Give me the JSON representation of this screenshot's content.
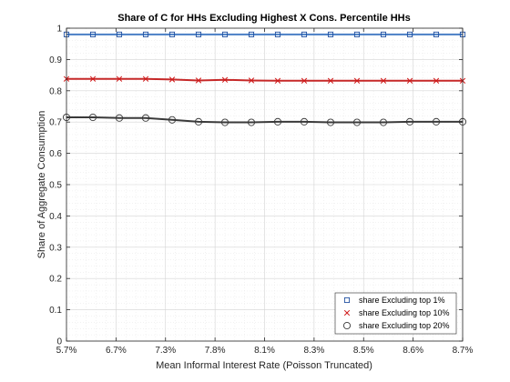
{
  "chart_data": {
    "type": "line",
    "title": "Share of C for HHs Excluding Highest X Cons. Percentile HHs",
    "xlabel": "Mean Informal Interest Rate (Poisson Truncated)",
    "ylabel": "Share of Aggregate Consumption",
    "x_tick_labels": [
      "5.7%",
      "6.7%",
      "7.3%",
      "7.8%",
      "8.1%",
      "8.3%",
      "8.5%",
      "8.6%",
      "8.7%"
    ],
    "y_ticks": [
      0,
      0.1,
      0.2,
      0.3,
      0.4,
      0.5,
      0.6,
      0.7,
      0.8,
      0.9,
      1
    ],
    "y_tick_labels": [
      "0",
      "0.1",
      "0.2",
      "0.3",
      "0.4",
      "0.5",
      "0.6",
      "0.7",
      "0.8",
      "0.9",
      "1"
    ],
    "ylim": [
      0,
      1
    ],
    "grid": true,
    "legend_position": "bottom-right",
    "series": [
      {
        "name": "share Excluding top 1%",
        "marker": "square",
        "marker_color": "#1f4fa0",
        "line_color": "#4a7fc6",
        "values": [
          0.98,
          0.98,
          0.98,
          0.98,
          0.98,
          0.98,
          0.98,
          0.98,
          0.98,
          0.98,
          0.98,
          0.98,
          0.98,
          0.98,
          0.98,
          0.98
        ]
      },
      {
        "name": "share Excluding top 10%",
        "marker": "x",
        "marker_color": "#d01818",
        "line_color": "#c62828",
        "values": [
          0.838,
          0.838,
          0.838,
          0.838,
          0.836,
          0.833,
          0.835,
          0.833,
          0.832,
          0.832,
          0.832,
          0.832,
          0.832,
          0.832,
          0.832,
          0.832
        ]
      },
      {
        "name": "share Excluding top 20%",
        "marker": "circle",
        "marker_color": "#3a3a3a",
        "line_color": "#3a3a3a",
        "values": [
          0.715,
          0.715,
          0.713,
          0.713,
          0.707,
          0.701,
          0.699,
          0.699,
          0.701,
          0.701,
          0.699,
          0.699,
          0.699,
          0.701,
          0.701,
          0.701
        ]
      }
    ]
  }
}
